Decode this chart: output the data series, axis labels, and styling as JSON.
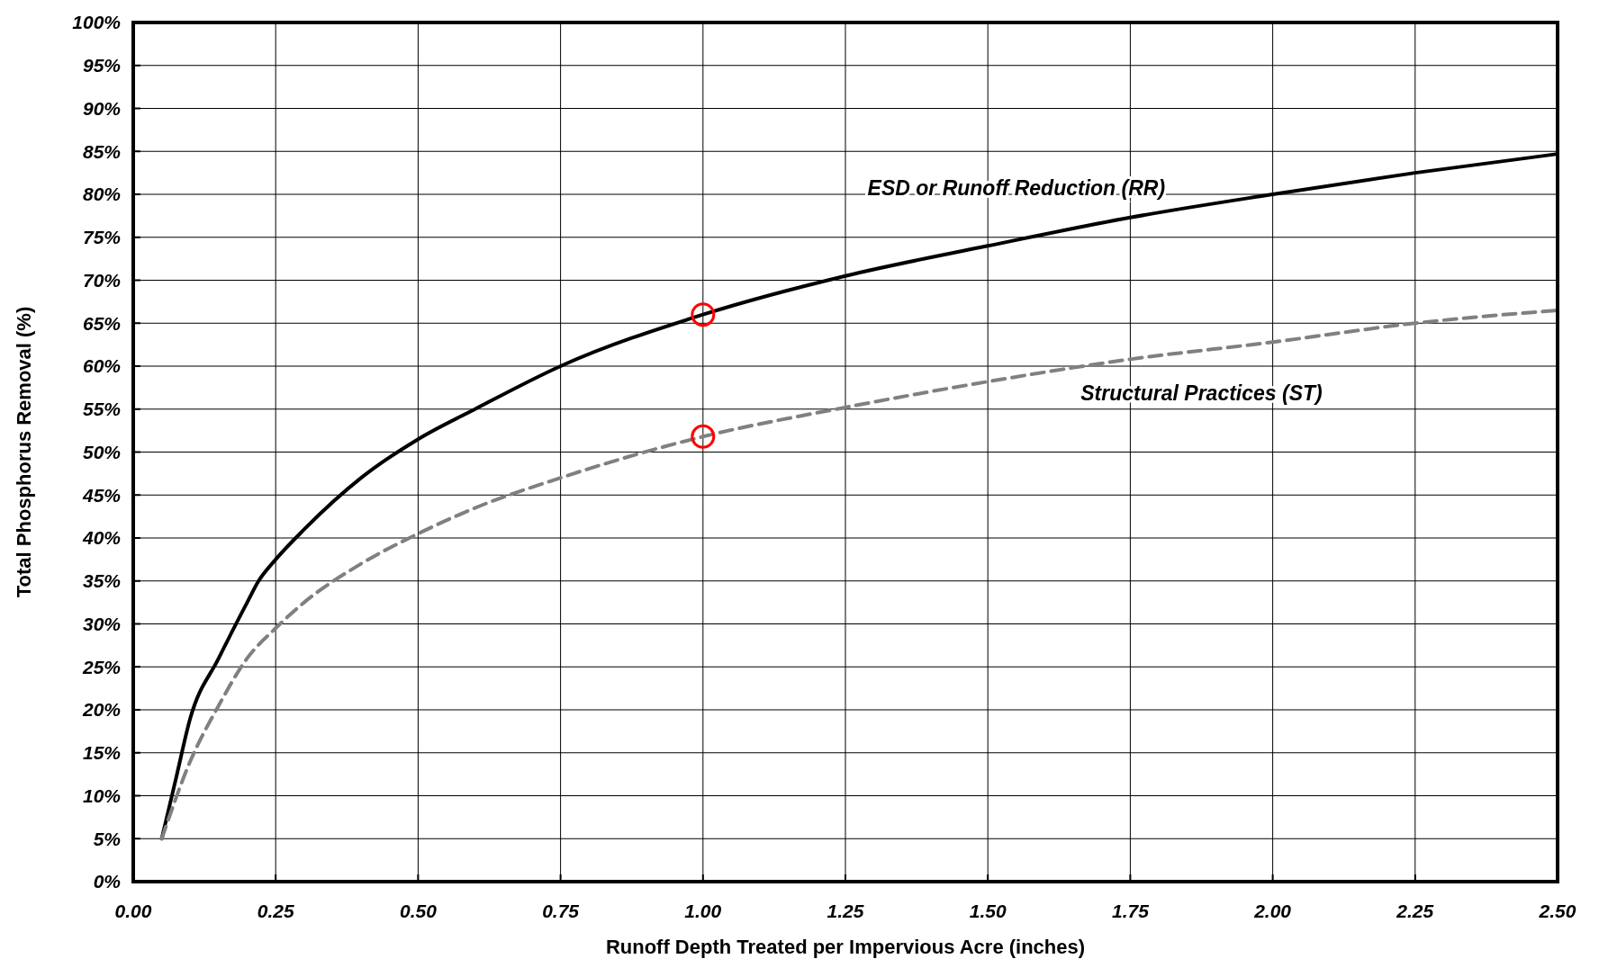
{
  "chart_data": {
    "type": "line",
    "xlabel": "Runoff Depth Treated per Impervious Acre (inches)",
    "ylabel": "Total Phosphorus Removal (%)",
    "xlim": [
      0,
      2.5
    ],
    "ylim": [
      0,
      100
    ],
    "xticks": [
      {
        "value": 0,
        "label": "0.00"
      },
      {
        "value": 0.25,
        "label": "0.25"
      },
      {
        "value": 0.5,
        "label": "0.50"
      },
      {
        "value": 0.75,
        "label": "0.75"
      },
      {
        "value": 1,
        "label": "1.00"
      },
      {
        "value": 1.25,
        "label": "1.25"
      },
      {
        "value": 1.5,
        "label": "1.50"
      },
      {
        "value": 1.75,
        "label": "1.75"
      },
      {
        "value": 2,
        "label": "2.00"
      },
      {
        "value": 2.25,
        "label": "2.25"
      },
      {
        "value": 2.5,
        "label": "2.50"
      }
    ],
    "yticks": [
      {
        "value": 0,
        "label": "0%"
      },
      {
        "value": 5,
        "label": "5%"
      },
      {
        "value": 10,
        "label": "10%"
      },
      {
        "value": 15,
        "label": "15%"
      },
      {
        "value": 20,
        "label": "20%"
      },
      {
        "value": 25,
        "label": "25%"
      },
      {
        "value": 30,
        "label": "30%"
      },
      {
        "value": 35,
        "label": "35%"
      },
      {
        "value": 40,
        "label": "40%"
      },
      {
        "value": 45,
        "label": "45%"
      },
      {
        "value": 50,
        "label": "50%"
      },
      {
        "value": 55,
        "label": "55%"
      },
      {
        "value": 60,
        "label": "60%"
      },
      {
        "value": 65,
        "label": "65%"
      },
      {
        "value": 70,
        "label": "70%"
      },
      {
        "value": 75,
        "label": "75%"
      },
      {
        "value": 80,
        "label": "80%"
      },
      {
        "value": 85,
        "label": "85%"
      },
      {
        "value": 90,
        "label": "90%"
      },
      {
        "value": 95,
        "label": "95%"
      },
      {
        "value": 100,
        "label": "100%"
      }
    ],
    "grid": true,
    "series": [
      {
        "name": "ESD or Runoff Reduction (RR)",
        "color": "#000000",
        "line_style": "solid",
        "marker": "none",
        "x": [
          0.05,
          0.075,
          0.1,
          0.15,
          0.2,
          0.22,
          0.25,
          0.3,
          0.4,
          0.5,
          0.6,
          0.75,
          1.0,
          1.25,
          1.5,
          1.75,
          2.0,
          2.25,
          2.5
        ],
        "values": [
          5,
          12,
          19,
          26,
          32.5,
          35,
          37.5,
          41,
          47,
          51.5,
          55,
          60,
          66,
          70.5,
          74,
          77.3,
          80,
          82.5,
          84.7
        ]
      },
      {
        "name": "Structural Practices (ST)",
        "color": "#808080",
        "line_style": "dashed",
        "marker": "none",
        "x": [
          0.05,
          0.1,
          0.15,
          0.2,
          0.25,
          0.3,
          0.4,
          0.5,
          0.6,
          0.75,
          1.0,
          1.25,
          1.5,
          1.75,
          2.0,
          2.25,
          2.5
        ],
        "values": [
          5,
          14,
          20.5,
          26,
          29.5,
          32.5,
          37,
          40.5,
          43.5,
          47,
          51.8,
          55.2,
          58.2,
          60.8,
          62.8,
          65,
          66.5
        ]
      },
      {
        "type": "scatter",
        "color": "#ff0000",
        "marker": "circle",
        "x": [
          1.0,
          1.0
        ],
        "values": [
          66,
          51.8
        ]
      }
    ]
  }
}
